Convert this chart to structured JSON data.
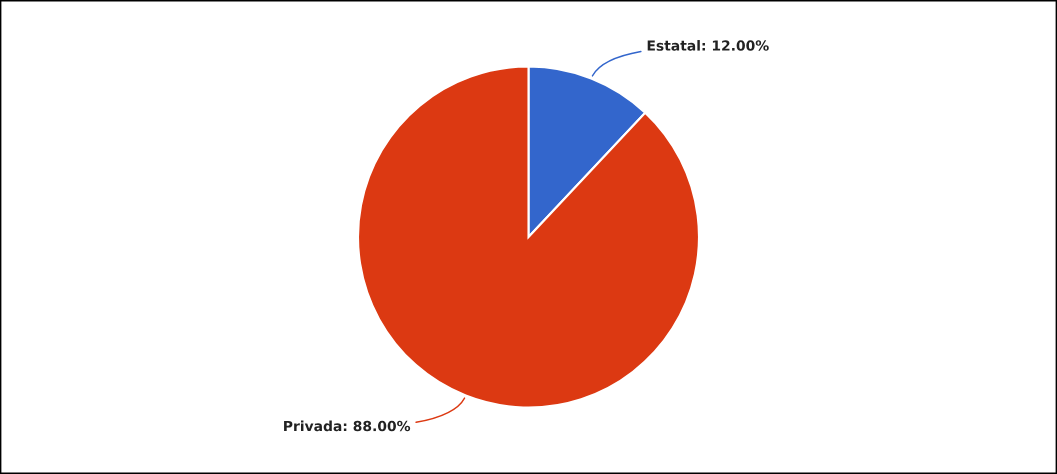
{
  "chart_data": {
    "type": "pie",
    "categories": [
      "Estatal",
      "Privada"
    ],
    "values": [
      12,
      88
    ],
    "colors": [
      "#3366cc",
      "#dc3912"
    ],
    "value_labels": [
      "12.00%",
      "88.00%"
    ],
    "legend": false
  }
}
